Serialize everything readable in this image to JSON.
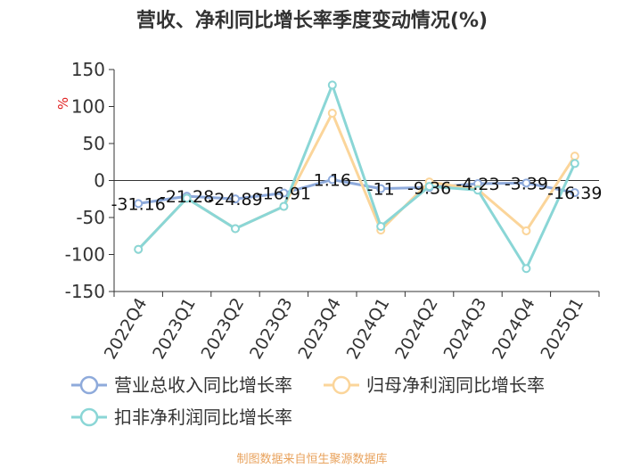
{
  "chart_data": {
    "type": "line",
    "title": "营收、净利同比增长率季度变动情况(%)",
    "ylabel": "%",
    "categories": [
      "2022Q4",
      "2023Q1",
      "2023Q2",
      "2023Q3",
      "2023Q4",
      "2024Q1",
      "2024Q2",
      "2024Q3",
      "2024Q4",
      "2025Q1"
    ],
    "ylim": [
      -150,
      150
    ],
    "yticks": [
      150,
      100,
      50,
      0,
      -50,
      -100,
      -150
    ],
    "grid": false,
    "legend_position": "bottom",
    "series": [
      {
        "name": "营业总收入同比增长率",
        "color": "#8eaadb",
        "values": [
          -31.16,
          -21.28,
          -24.89,
          -16.91,
          1.16,
          -11,
          -9.36,
          -4.23,
          -3.39,
          -16.39
        ],
        "labels": [
          "-31.16",
          "-21.28",
          "-24.89",
          "-16.91",
          "1.16",
          "-11",
          "-9.36",
          "-4.23",
          "-3.39",
          "-16.39"
        ]
      },
      {
        "name": "归母净利润同比增长率",
        "color": "#fbd59a",
        "values": [
          -93,
          -24,
          -65,
          -35,
          91,
          -67,
          -2,
          -12,
          -68,
          33
        ]
      },
      {
        "name": "扣非净利润同比增长率",
        "color": "#8ad6d6",
        "values": [
          -93,
          -24,
          -65,
          -35,
          129,
          -62,
          -8,
          -13,
          -119,
          23
        ]
      }
    ]
  },
  "footer": "制图数据来自恒生聚源数据库"
}
